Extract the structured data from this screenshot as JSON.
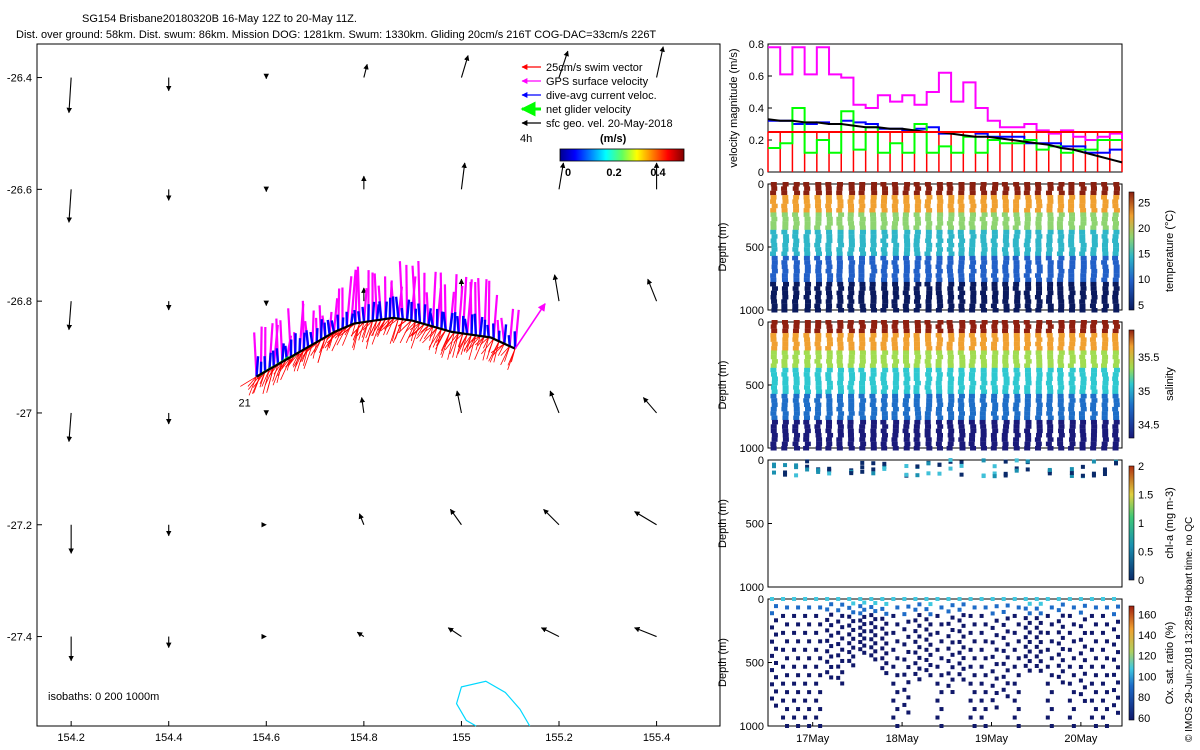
{
  "header": {
    "line1": "SG154 Brisbane20180320B 16-May 12Z to 20-May 11Z.",
    "line2": "Dist. over ground: 58km. Dist. swum: 86km. Mission DOG: 1281km. Swum: 1330km. Gliding 20cm/s 216T COG-DAC=33cm/s 226T"
  },
  "credit": "© IMOS 29-Jun-2018 13:28:59 Hobart time. no QC",
  "colors": {
    "swim": "#ff0000",
    "gps": "#ff00ff",
    "dac": "#0000ff",
    "net": "#00ff00",
    "sfc": "#000000",
    "isobath": "#00d8ff"
  },
  "chart_data": [
    {
      "type": "quiver_map",
      "xlim": [
        154.13,
        155.53
      ],
      "ylim": [
        -27.56,
        -26.34
      ],
      "xticks": [
        154.2,
        154.4,
        154.6,
        154.8,
        155,
        155.2,
        155.4
      ],
      "yticks": [
        -26.4,
        -26.6,
        -26.8,
        -27,
        -27.2,
        -27.4
      ],
      "xtick_labels": [
        "154.2",
        "154.4",
        "154.6",
        "154.8",
        "155",
        "155.2",
        "155.4"
      ],
      "ytick_labels": [
        "-26.4",
        "-26.6",
        "-26.8",
        "-27",
        "-27.2",
        "-27.4"
      ],
      "legend": {
        "items": [
          {
            "label": "25cm/s swim vector",
            "color": "#ff0000"
          },
          {
            "label": "GPS surface velocity",
            "color": "#ff00ff"
          },
          {
            "label": "dive-avg current veloc.",
            "color": "#0000ff"
          },
          {
            "label": "net glider velocity",
            "color": "#00ff00"
          },
          {
            "label": "sfc geo. vel. 20-May-2018",
            "color": "#000000"
          }
        ],
        "interval_label": "4h",
        "colorbar_title": "(m/s)",
        "colorbar_ticks": [
          "0",
          "0.2",
          "0.4"
        ],
        "position": "top-right"
      },
      "isobath_label": "isobaths: 0   200   1000m",
      "start_label": "21",
      "geostrophic_arrows": [
        {
          "lon": 154.2,
          "lat": -26.4,
          "u": -0.01,
          "v": -0.16
        },
        {
          "lon": 154.4,
          "lat": -26.4,
          "u": 0.0,
          "v": -0.06
        },
        {
          "lon": 154.6,
          "lat": -26.4,
          "u": 0.0,
          "v": -0.005
        },
        {
          "lon": 154.8,
          "lat": -26.4,
          "u": 0.015,
          "v": 0.06
        },
        {
          "lon": 155.0,
          "lat": -26.4,
          "u": 0.03,
          "v": 0.1
        },
        {
          "lon": 155.2,
          "lat": -26.4,
          "u": 0.04,
          "v": 0.12
        },
        {
          "lon": 155.4,
          "lat": -26.4,
          "u": 0.03,
          "v": 0.14
        },
        {
          "lon": 154.2,
          "lat": -26.6,
          "u": -0.01,
          "v": -0.15
        },
        {
          "lon": 154.4,
          "lat": -26.6,
          "u": 0.0,
          "v": -0.05
        },
        {
          "lon": 154.6,
          "lat": -26.6,
          "u": 0.0,
          "v": -0.01
        },
        {
          "lon": 154.8,
          "lat": -26.6,
          "u": 0.0,
          "v": 0.06
        },
        {
          "lon": 155.0,
          "lat": -26.6,
          "u": 0.015,
          "v": 0.12
        },
        {
          "lon": 155.2,
          "lat": -26.6,
          "u": 0.02,
          "v": 0.12
        },
        {
          "lon": 155.4,
          "lat": -26.6,
          "u": 0.0,
          "v": 0.12
        },
        {
          "lon": 154.2,
          "lat": -26.8,
          "u": -0.01,
          "v": -0.13
        },
        {
          "lon": 154.4,
          "lat": -26.8,
          "u": 0.0,
          "v": -0.04
        },
        {
          "lon": 154.6,
          "lat": -26.8,
          "u": 0.0,
          "v": -0.02
        },
        {
          "lon": 154.8,
          "lat": -26.8,
          "u": 0.0,
          "v": 0.06
        },
        {
          "lon": 155.0,
          "lat": -26.8,
          "u": 0.0,
          "v": 0.1
        },
        {
          "lon": 155.2,
          "lat": -26.8,
          "u": -0.02,
          "v": 0.12
        },
        {
          "lon": 155.4,
          "lat": -26.8,
          "u": -0.04,
          "v": 0.1
        },
        {
          "lon": 154.2,
          "lat": -27.0,
          "u": -0.01,
          "v": -0.13
        },
        {
          "lon": 154.4,
          "lat": -27.0,
          "u": 0.0,
          "v": -0.05
        },
        {
          "lon": 154.6,
          "lat": -27.0,
          "u": 0.0,
          "v": -0.01
        },
        {
          "lon": 154.8,
          "lat": -27.0,
          "u": -0.01,
          "v": 0.07
        },
        {
          "lon": 155.0,
          "lat": -27.0,
          "u": -0.02,
          "v": 0.1
        },
        {
          "lon": 155.2,
          "lat": -27.0,
          "u": -0.04,
          "v": 0.1
        },
        {
          "lon": 155.4,
          "lat": -27.0,
          "u": -0.06,
          "v": 0.07
        },
        {
          "lon": 154.2,
          "lat": -27.2,
          "u": 0.0,
          "v": -0.13
        },
        {
          "lon": 154.4,
          "lat": -27.2,
          "u": 0.0,
          "v": -0.05
        },
        {
          "lon": 154.6,
          "lat": -27.2,
          "u": 0.0,
          "v": 0.0
        },
        {
          "lon": 154.8,
          "lat": -27.2,
          "u": -0.02,
          "v": 0.05
        },
        {
          "lon": 155.0,
          "lat": -27.2,
          "u": -0.05,
          "v": 0.07
        },
        {
          "lon": 155.2,
          "lat": -27.2,
          "u": -0.07,
          "v": 0.07
        },
        {
          "lon": 155.4,
          "lat": -27.2,
          "u": -0.1,
          "v": 0.06
        },
        {
          "lon": 154.2,
          "lat": -27.4,
          "u": 0.0,
          "v": -0.11
        },
        {
          "lon": 154.4,
          "lat": -27.4,
          "u": 0.0,
          "v": -0.05
        },
        {
          "lon": 154.6,
          "lat": -27.4,
          "u": 0.0,
          "v": 0.0
        },
        {
          "lon": 154.8,
          "lat": -27.4,
          "u": -0.03,
          "v": 0.02
        },
        {
          "lon": 155.0,
          "lat": -27.4,
          "u": -0.06,
          "v": 0.04
        },
        {
          "lon": 155.2,
          "lat": -27.4,
          "u": -0.08,
          "v": 0.04
        },
        {
          "lon": 155.4,
          "lat": -27.4,
          "u": -0.1,
          "v": 0.04
        }
      ],
      "track": [
        {
          "lon": 154.58,
          "lat": -26.935
        },
        {
          "lon": 154.62,
          "lat": -26.915
        },
        {
          "lon": 154.66,
          "lat": -26.895
        },
        {
          "lon": 154.7,
          "lat": -26.875
        },
        {
          "lon": 154.74,
          "lat": -26.855
        },
        {
          "lon": 154.78,
          "lat": -26.84
        },
        {
          "lon": 154.82,
          "lat": -26.835
        },
        {
          "lon": 154.86,
          "lat": -26.83
        },
        {
          "lon": 154.9,
          "lat": -26.835
        },
        {
          "lon": 154.94,
          "lat": -26.845
        },
        {
          "lon": 154.98,
          "lat": -26.855
        },
        {
          "lon": 155.02,
          "lat": -26.86
        },
        {
          "lon": 155.06,
          "lat": -26.865
        },
        {
          "lon": 155.11,
          "lat": -26.885
        }
      ],
      "isobath_line": [
        {
          "lon": 155.14,
          "lat": -27.56
        },
        {
          "lon": 155.12,
          "lat": -27.53
        },
        {
          "lon": 155.09,
          "lat": -27.5
        },
        {
          "lon": 155.05,
          "lat": -27.48
        },
        {
          "lon": 155.0,
          "lat": -27.49
        },
        {
          "lon": 154.99,
          "lat": -27.52
        },
        {
          "lon": 155.01,
          "lat": -27.55
        },
        {
          "lon": 155.03,
          "lat": -27.56
        }
      ]
    },
    {
      "type": "line",
      "ylabel": "velocity magnitude (m/s)",
      "ylim": [
        0,
        0.8
      ],
      "yticks": [
        "0",
        "0.2",
        "0.4",
        "0.6",
        "0.8"
      ],
      "series": [
        {
          "color": "#ff00ff",
          "values": [
            0.78,
            0.61,
            0.78,
            0.61,
            0.78,
            0.61,
            0.59,
            0.42,
            0.4,
            0.48,
            0.44,
            0.48,
            0.42,
            0.5,
            0.62,
            0.44,
            0.56,
            0.4,
            0.32,
            0.28,
            0.28,
            0.3,
            0.26,
            0.24,
            0.26,
            0.22,
            0.2,
            0.22,
            0.24,
            0.2
          ]
        },
        {
          "color": "#0000ff",
          "values": [
            0.32,
            0.32,
            0.3,
            0.3,
            0.31,
            0.3,
            0.32,
            0.31,
            0.3,
            0.27,
            0.27,
            0.26,
            0.27,
            0.28,
            0.24,
            0.25,
            0.25,
            0.24,
            0.22,
            0.22,
            0.22,
            0.18,
            0.18,
            0.18,
            0.16,
            0.16,
            0.12,
            0.12,
            0.14,
            0.14
          ]
        },
        {
          "color": "#00ff00",
          "values": [
            0.15,
            0.18,
            0.4,
            0.12,
            0.2,
            0.12,
            0.38,
            0.14,
            0.28,
            0.12,
            0.18,
            0.12,
            0.3,
            0.12,
            0.16,
            0.12,
            0.22,
            0.12,
            0.2,
            0.18,
            0.18,
            0.2,
            0.14,
            0.16,
            0.12,
            0.14,
            0.14,
            0.2,
            0.2,
            0.2
          ]
        },
        {
          "color": "#000000",
          "values": [
            0.33,
            0.32,
            0.32,
            0.31,
            0.31,
            0.3,
            0.3,
            0.29,
            0.28,
            0.28,
            0.27,
            0.27,
            0.26,
            0.25,
            0.25,
            0.24,
            0.23,
            0.22,
            0.22,
            0.21,
            0.2,
            0.19,
            0.18,
            0.17,
            0.15,
            0.14,
            0.12,
            0.1,
            0.08,
            0.06
          ]
        },
        {
          "color": "#ff0000",
          "values": [
            0.25,
            0.25,
            0.25,
            0.25,
            0.25,
            0.25,
            0.25,
            0.25,
            0.25,
            0.25,
            0.25,
            0.25,
            0.25,
            0.25,
            0.25,
            0.25,
            0.25,
            0.25,
            0.25,
            0.25,
            0.25,
            0.25,
            0.25,
            0.25,
            0.25,
            0.25,
            0.25,
            0.25,
            0.25,
            0.25
          ]
        }
      ]
    },
    {
      "type": "scatter",
      "ylabel": "Depth (m)",
      "ylim": [
        0,
        1000
      ],
      "yticks": [
        "0",
        "500",
        "1000"
      ],
      "colorbar_label": "temperature (°C)",
      "colorbar_ticks": [
        "5",
        "10",
        "15",
        "20",
        "25"
      ],
      "clim": [
        4,
        27
      ],
      "profile_max_depth": 1000,
      "dives": 32
    },
    {
      "type": "scatter",
      "ylabel": "Depth (m)",
      "ylim": [
        0,
        1000
      ],
      "yticks": [
        "0",
        "500",
        "1000"
      ],
      "colorbar_label": "salinity",
      "colorbar_ticks": [
        "34.5",
        "35",
        "35.5"
      ],
      "clim": [
        34.3,
        35.9
      ],
      "profile_max_depth": 1000,
      "dives": 32
    },
    {
      "type": "scatter",
      "ylabel": "Depth (m)",
      "ylim": [
        0,
        1000
      ],
      "yticks": [
        "0",
        "500",
        "1000"
      ],
      "colorbar_label": "chl-a (mg m-3)",
      "colorbar_ticks": [
        "0",
        "0.5",
        "1",
        "1.5",
        "2"
      ],
      "clim": [
        0,
        2
      ],
      "profile_max_depth": 130,
      "dives": 32
    },
    {
      "type": "scatter",
      "ylabel": "Depth (m)",
      "ylim": [
        0,
        1000
      ],
      "yticks": [
        "0",
        "500",
        "1000"
      ],
      "colorbar_label": "Ox. sat. ratio (%)",
      "colorbar_ticks": [
        "60",
        "80",
        "100",
        "120",
        "140",
        "160"
      ],
      "clim": [
        58,
        168
      ],
      "profile_max_depth": 1000,
      "dives": 32
    }
  ],
  "time_axis": {
    "labels": [
      "17May",
      "18May",
      "19May",
      "20May"
    ],
    "day_start": 16.5,
    "day_end": 20.46
  }
}
